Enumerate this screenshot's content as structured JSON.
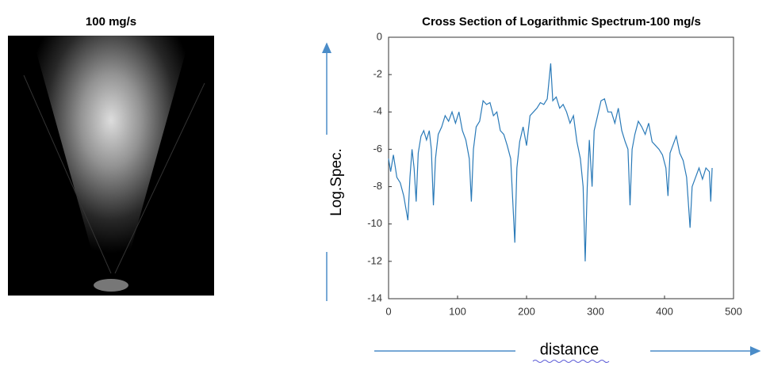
{
  "image_panel": {
    "title": "100 mg/s"
  },
  "chart_data": {
    "type": "line",
    "title": "Cross Section of Logarithmic Spectrum-100 mg/s",
    "x_label": "distance",
    "y_label": "Log.Spec.",
    "xlim": [
      0,
      500
    ],
    "ylim": [
      -14,
      0
    ],
    "xticks": [
      0,
      100,
      200,
      300,
      400,
      500
    ],
    "yticks": [
      0,
      -2,
      -4,
      -6,
      -8,
      -10,
      -12,
      -14
    ],
    "grid": false,
    "series": [
      {
        "color": "#2a7ab8",
        "x": [
          0,
          3,
          7,
          12,
          17,
          22,
          28,
          31,
          34,
          37,
          40,
          43,
          47,
          51,
          55,
          59,
          62,
          65,
          68,
          72,
          77,
          82,
          87,
          92,
          97,
          102,
          107,
          112,
          117,
          120,
          123,
          127,
          132,
          137,
          142,
          147,
          152,
          157,
          162,
          167,
          172,
          177,
          183,
          186,
          190,
          195,
          200,
          205,
          210,
          215,
          220,
          225,
          230,
          235,
          238,
          243,
          248,
          253,
          258,
          263,
          268,
          273,
          278,
          282,
          285,
          288,
          291,
          295,
          298,
          303,
          308,
          313,
          318,
          323,
          328,
          333,
          338,
          343,
          347,
          350,
          353,
          357,
          362,
          367,
          372,
          377,
          382,
          387,
          392,
          397,
          402,
          405,
          408,
          412,
          417,
          422,
          427,
          432,
          437,
          440,
          445,
          450,
          455,
          460,
          465,
          467,
          469
        ],
        "values": [
          -6.5,
          -7.2,
          -6.3,
          -7.5,
          -7.8,
          -8.5,
          -9.8,
          -7.5,
          -6.0,
          -7.0,
          -8.8,
          -6.2,
          -5.3,
          -5.0,
          -5.5,
          -5.0,
          -6.0,
          -9.0,
          -6.5,
          -5.2,
          -4.8,
          -4.2,
          -4.5,
          -4.0,
          -4.6,
          -4.0,
          -5.0,
          -5.5,
          -6.5,
          -8.8,
          -6.0,
          -4.8,
          -4.5,
          -3.4,
          -3.6,
          -3.5,
          -4.2,
          -4.0,
          -5.0,
          -5.2,
          -5.8,
          -6.5,
          -11.0,
          -7.0,
          -5.6,
          -4.8,
          -5.8,
          -4.2,
          -4.0,
          -3.8,
          -3.5,
          -3.6,
          -3.3,
          -1.4,
          -3.4,
          -3.2,
          -3.8,
          -3.6,
          -4.0,
          -4.6,
          -4.2,
          -5.6,
          -6.5,
          -8.0,
          -12.0,
          -8.0,
          -5.5,
          -8.0,
          -5.0,
          -4.2,
          -3.4,
          -3.3,
          -4.0,
          -4.0,
          -4.6,
          -3.8,
          -5.0,
          -5.6,
          -6.0,
          -9.0,
          -6.0,
          -5.2,
          -4.5,
          -4.8,
          -5.2,
          -4.6,
          -5.6,
          -5.8,
          -6.0,
          -6.3,
          -7.0,
          -8.5,
          -6.2,
          -5.8,
          -5.3,
          -6.2,
          -6.6,
          -7.5,
          -10.2,
          -8.0,
          -7.5,
          -7.0,
          -7.6,
          -7.0,
          -7.2,
          -8.8,
          -7.0
        ]
      }
    ]
  }
}
